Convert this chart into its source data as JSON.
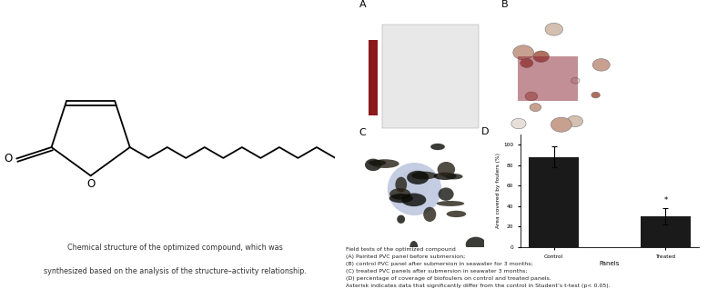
{
  "bar_categories": [
    "Control",
    "Treated"
  ],
  "bar_values": [
    88,
    30
  ],
  "bar_errors": [
    10,
    8
  ],
  "bar_color": "#1a1a1a",
  "ylabel": "Area covered by foulers (%)",
  "xlabel": "Panels",
  "ylim": [
    0,
    110
  ],
  "yticks": [
    0,
    20,
    40,
    60,
    80,
    100
  ],
  "panel_D_label": "D",
  "left_caption_line1": "Chemical structure of the optimized compound, which was",
  "left_caption_line2": "synthesized based on the analysis of the structure–activity relationship.",
  "right_caption_lines": [
    "Field tests of the optimized compound",
    "(A) Painted PVC panel before submersion;",
    "(B) control PVC panel after submersion in seawater for 3 months;",
    "(C) treated PVC panels after submersion in seawater 3 months;",
    "(D) percentage of coverage of biofoulers on control and treated panels.",
    "Asterisk indicates data that significantly differ from the control in Student’s t-test (p< 0.05)."
  ],
  "photo_A_label": "A",
  "photo_B_label": "B",
  "photo_C_label": "C",
  "background_color": "#ffffff",
  "fig_width": 8.0,
  "fig_height": 3.18,
  "photo_A_bg": "#808080",
  "photo_A_panel": "#e8e8e8",
  "photo_A_strip": "#8b1a1a",
  "photo_B_bg": "#3a2010",
  "photo_C_bg": "#1a1a0a"
}
